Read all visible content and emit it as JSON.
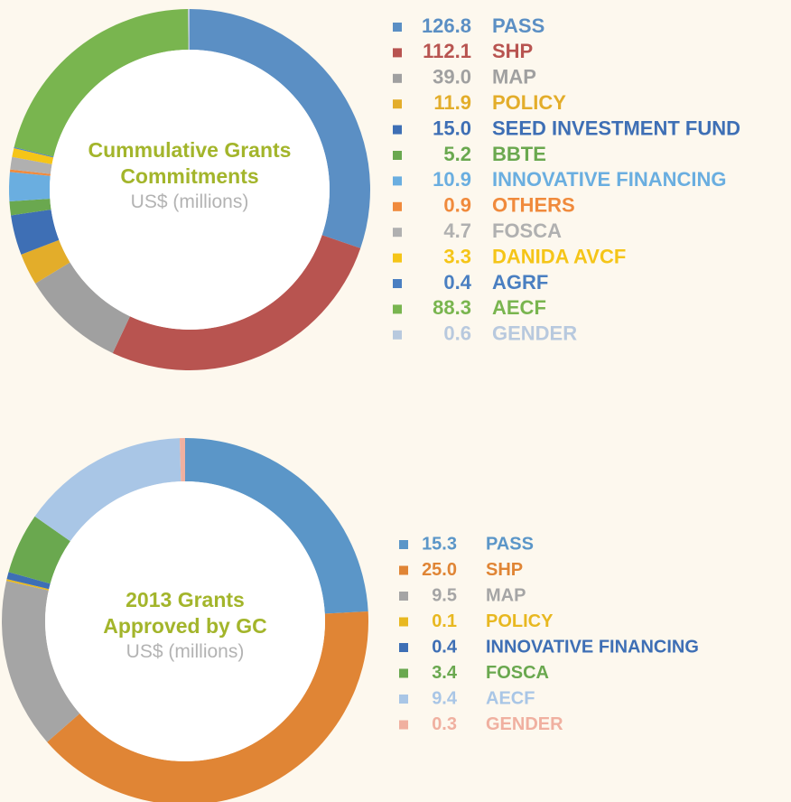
{
  "chart_data": [
    {
      "type": "donut",
      "title": "Cummulative Grants Commitments",
      "subtitle": "US$ (millions)",
      "categories": [
        "PASS",
        "SHP",
        "MAP",
        "POLICY",
        "SEED INVESTMENT FUND",
        "BBTE",
        "INNOVATIVE FINANCING",
        "OTHERS",
        "FOSCA",
        "DANIDA AVCF",
        "AGRF",
        "AECF",
        "GENDER"
      ],
      "values": [
        126.8,
        112.1,
        39.0,
        11.9,
        15.0,
        5.2,
        10.9,
        0.9,
        4.7,
        3.3,
        0.4,
        88.3,
        0.6
      ],
      "value_labels": [
        "126.8",
        "112.1",
        "39.0",
        "11.9",
        "15.0",
        "5.2",
        "10.9",
        "0.9",
        "4.7",
        "3.3",
        "0.4",
        "88.3",
        "0.6"
      ],
      "colors": [
        "#5b8fc4",
        "#b85450",
        "#a0a0a0",
        "#e3ad2a",
        "#3e6fb5",
        "#6aa84f",
        "#6aaee0",
        "#f08a3c",
        "#b0b0b0",
        "#f5c518",
        "#4a7fc1",
        "#79b54f",
        "#b8c9de"
      ]
    },
    {
      "type": "donut",
      "title": "2013 Grants Approved by GC",
      "subtitle": "US$ (millions)",
      "categories": [
        "PASS",
        "SHP",
        "MAP",
        "POLICY",
        "INNOVATIVE FINANCING",
        "FOSCA",
        "AECF",
        "GENDER"
      ],
      "values": [
        15.3,
        25.0,
        9.5,
        0.1,
        0.4,
        3.4,
        9.4,
        0.3
      ],
      "value_labels": [
        "15.3",
        "25.0",
        "9.5",
        "0.1",
        "0.4",
        "3.4",
        "9.4",
        "0.3"
      ],
      "colors": [
        "#5b96c8",
        "#e08535",
        "#a5a5a5",
        "#e8b820",
        "#3e6fb5",
        "#6aa84f",
        "#a9c6e6",
        "#f0b0a0"
      ]
    }
  ]
}
